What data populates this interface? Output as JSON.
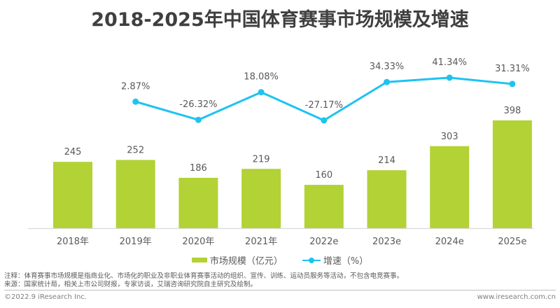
{
  "chart_data": {
    "type": "bar",
    "title": "2018-2025年中国体育赛事市场规模及增速",
    "categories": [
      "2018年",
      "2019年",
      "2020年",
      "2021年",
      "2022e",
      "2023e",
      "2024e",
      "2025e"
    ],
    "series": [
      {
        "name": "市场规模（亿元）",
        "type": "bar",
        "color": "#b2d235",
        "values": [
          245,
          252,
          186,
          219,
          160,
          214,
          303,
          398
        ],
        "labels": [
          "245",
          "252",
          "186",
          "219",
          "160",
          "214",
          "303",
          "398"
        ]
      },
      {
        "name": "增速（%）",
        "type": "line",
        "color": "#1dc3f1",
        "values": [
          null,
          2.87,
          -26.32,
          18.08,
          -27.17,
          34.33,
          41.34,
          31.31
        ],
        "labels": [
          "",
          "2.87%",
          "-26.32%",
          "18.08%",
          "-27.17%",
          "34.33%",
          "41.34%",
          "31.31%"
        ]
      }
    ],
    "xlabel": "",
    "ylabel": "",
    "bar_ylim": [
      0,
      420
    ],
    "grid": false,
    "legend": "bottom-center"
  },
  "legend": {
    "bar_label": "市场规模（亿元）",
    "line_label": "增速（%）"
  },
  "notes": {
    "note": "注释：体育赛事市场规模是指商业化、市场化的职业及非职业体育赛事活动的组织、宣传、训练、运动员服务等活动，不包含电竞赛事。",
    "source": "来源：国家统计局，相关上市公司财报，专家访谈，艾瑞咨询研究院自主研究及绘制。"
  },
  "footer": {
    "copyright": "©2022.9 iResearch Inc.",
    "website": "www.iresearch.com.cn"
  }
}
